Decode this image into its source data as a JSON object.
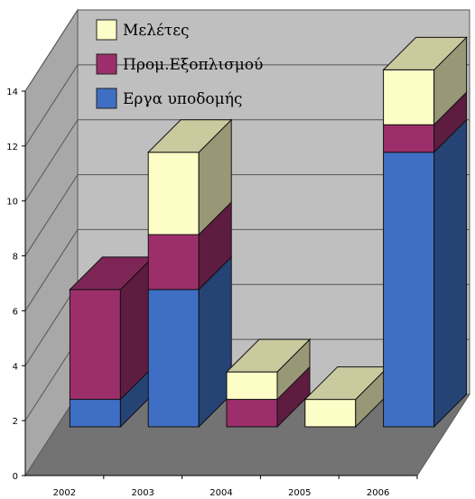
{
  "chart_data": {
    "type": "bar",
    "stacked": true,
    "three_d": true,
    "categories": [
      "2002",
      "2003",
      "2004",
      "2005",
      "2006"
    ],
    "series": [
      {
        "name": "Εργα υποδομής",
        "color": "#3f6fc4",
        "values": [
          1,
          5,
          0,
          0,
          10
        ]
      },
      {
        "name": "Προμ.Εξοπλισμού",
        "color": "#9c2f6b",
        "values": [
          4,
          2,
          1,
          0,
          1
        ]
      },
      {
        "name": "Μελέτες",
        "color": "#fdfdc7",
        "values": [
          0,
          3,
          1,
          1,
          2
        ]
      }
    ],
    "y_ticks": [
      "0",
      "2",
      "4",
      "6",
      "8",
      "10",
      "12",
      "14"
    ],
    "ylim": [
      0,
      14
    ],
    "grid": true,
    "legend_position": "top-left",
    "legend_order": [
      2,
      1,
      0
    ],
    "title": "",
    "xlabel": "",
    "ylabel": ""
  }
}
